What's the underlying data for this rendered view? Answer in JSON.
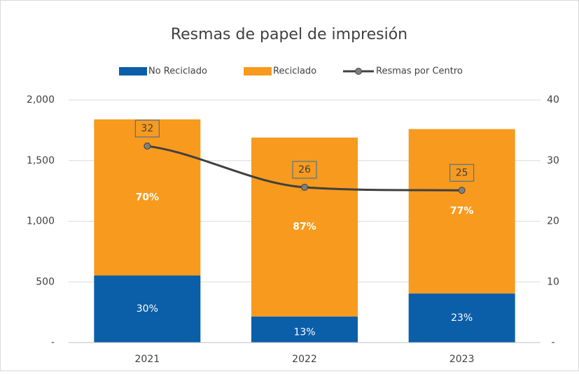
{
  "chart_data": {
    "type": "bar",
    "stacked": true,
    "title": "Resmas de papel de impresión",
    "categories": [
      "2021",
      "2022",
      "2023"
    ],
    "series": [
      {
        "name": "No Reciclado",
        "color": "#0b5ea8",
        "values": [
          553,
          215,
          405
        ],
        "percent_labels": [
          "30%",
          "13%",
          "23%"
        ]
      },
      {
        "name": "Reciclado",
        "color": "#f79a1e",
        "values": [
          1287,
          1475,
          1355
        ],
        "percent_labels": [
          "70%",
          "87%",
          "77%"
        ]
      },
      {
        "name": "Resmas por Centro",
        "type": "line",
        "axis": "y2",
        "color": "#404040",
        "marker_color": "#7f7f7f",
        "values": [
          32.4,
          25.6,
          25.1
        ],
        "value_labels": [
          "32",
          "26",
          "25"
        ]
      }
    ],
    "ylim": [
      0,
      2000
    ],
    "yticks": [
      {
        "value": 0,
        "label": "-"
      },
      500,
      {
        "value": 1000,
        "label": "1,000"
      },
      {
        "value": 1500,
        "label": "1,500"
      },
      {
        "value": 2000,
        "label": "2,000"
      }
    ],
    "y2lim": [
      0,
      40
    ],
    "y2ticks": [
      {
        "value": 0,
        "label": "-"
      },
      10,
      20,
      30,
      40
    ],
    "grid": true,
    "legend": "top"
  }
}
